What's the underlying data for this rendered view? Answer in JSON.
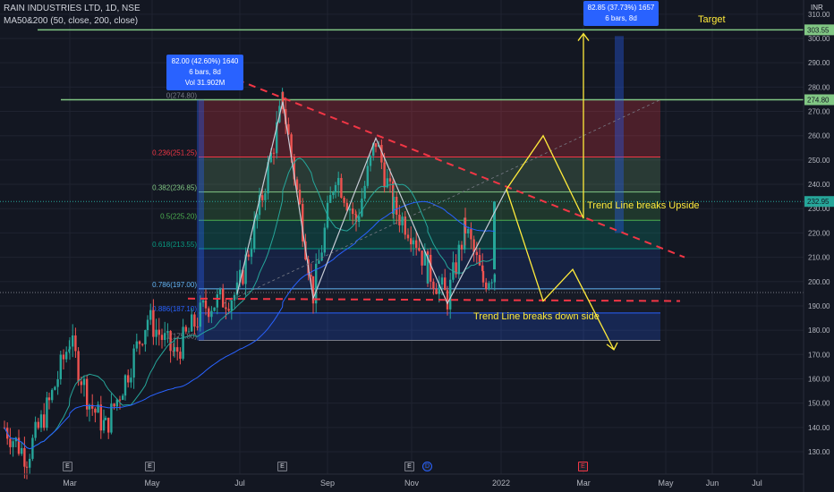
{
  "header": {
    "title": "RAIN INDUSTRIES LTD, 1D, NSE",
    "indicator": "MA50&200 (50, close, 200, close)",
    "currency": "INR"
  },
  "chart_data": {
    "type": "candlestick",
    "y_ticks": [
      130,
      140,
      150,
      160,
      170,
      180,
      190,
      200,
      210,
      220,
      230,
      240,
      250,
      260,
      270,
      280,
      290,
      300,
      310
    ],
    "y_tick_labels": [
      "130.00",
      "140.00",
      "150.00",
      "160.00",
      "170.00",
      "180.00",
      "190.00",
      "200.00",
      "210.00",
      "220.00",
      "230.00",
      "240.00",
      "250.00",
      "260.00",
      "270.00",
      "280.00",
      "290.00",
      "300.00",
      "310.00"
    ],
    "ylim": [
      122,
      313
    ],
    "x_ticks": [
      "Mar",
      "May",
      "Jul",
      "Sep",
      "Nov",
      "2022",
      "Mar",
      "May",
      "Jun",
      "Jul"
    ],
    "fib_levels": [
      {
        "label": "0(274.80)",
        "value": 274.8
      },
      {
        "label": "0.236(251.25)",
        "value": 251.25
      },
      {
        "label": "0.382(236.85)",
        "value": 236.85
      },
      {
        "label": "0.5(225.20)",
        "value": 225.2
      },
      {
        "label": "0.618(213.55)",
        "value": 213.55
      },
      {
        "label": "0.786(197.00)",
        "value": 197.0
      },
      {
        "label": "0.886(187.10)",
        "value": 187.1
      },
      {
        "label": "1(175.80)",
        "value": 175.8
      }
    ],
    "price_tags": [
      {
        "label": "303.55",
        "value": 303.55,
        "color": "#81c784"
      },
      {
        "label": "274.80",
        "value": 274.8,
        "color": "#81c784"
      },
      {
        "label": "232.95",
        "value": 232.95,
        "color": "#26a69a"
      }
    ],
    "horizontal_lines": [
      303.55,
      274.8
    ],
    "annotations": {
      "target": "Target",
      "upside": "Trend Line breaks Upside",
      "downside": "Trend Line breaks down side"
    },
    "measure_boxes": [
      {
        "lines": [
          "82.00 (42.60%) 1640",
          "6 bars, 8d",
          "Vol 31.902M"
        ]
      },
      {
        "lines": [
          "82.85 (37.73%) 1657",
          "6 bars, 8d"
        ]
      }
    ],
    "events": [
      "E",
      "E",
      "E",
      "E",
      "D",
      "E"
    ],
    "candles_summary": {
      "start": 140,
      "low_point": 128,
      "mid_high": 274.8,
      "last_close": 232.95
    }
  }
}
